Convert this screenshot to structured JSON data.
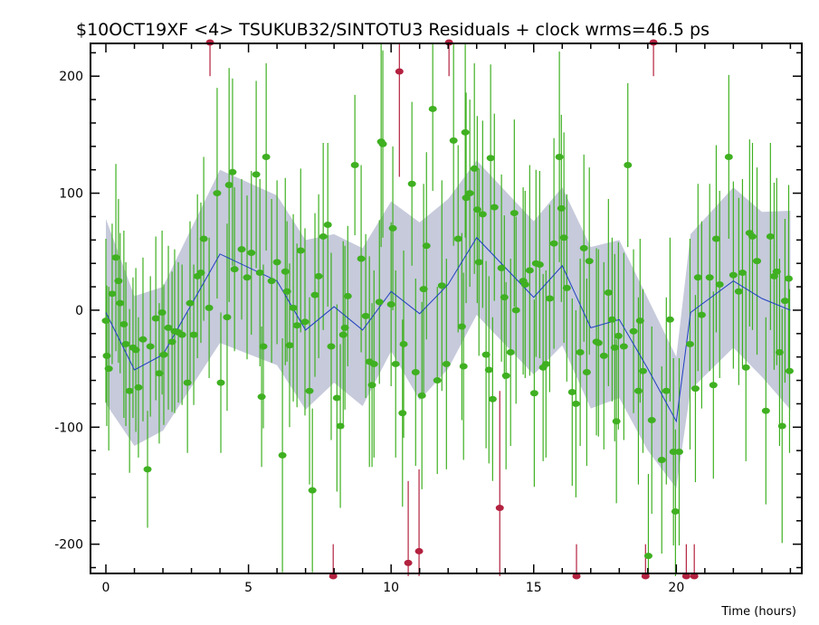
{
  "chart_data": {
    "type": "scatter",
    "title": "$10OCT19XF <4> TSUKUB32/SINTOTU3 Residuals + clock wrms=46.5  ps",
    "xlabel": "Time (hours)",
    "ylabel": "",
    "xlim": [
      -0.54,
      24.4
    ],
    "ylim": [
      -225,
      228
    ],
    "x_ticks": [
      0,
      5,
      10,
      15,
      20
    ],
    "y_ticks": [
      -200,
      -100,
      0,
      100,
      200
    ],
    "grid": false,
    "colors": {
      "points": "#3fb021",
      "outliers": "#b3213f",
      "model": "#1f3fbf",
      "band": "#c6cadb"
    },
    "points": [
      [
        0.0,
        -9,
        70
      ],
      [
        0.03,
        -39,
        60
      ],
      [
        0.1,
        -50,
        70
      ],
      [
        0.22,
        14,
        60
      ],
      [
        0.35,
        45,
        80
      ],
      [
        0.44,
        25,
        70
      ],
      [
        0.5,
        6,
        60
      ],
      [
        0.63,
        -12,
        80
      ],
      [
        0.7,
        -29,
        70
      ],
      [
        0.83,
        -69,
        70
      ],
      [
        0.95,
        -32,
        60
      ],
      [
        1.05,
        -34,
        70
      ],
      [
        1.14,
        -66,
        60
      ],
      [
        1.3,
        -25,
        70
      ],
      [
        1.46,
        -136,
        50
      ],
      [
        1.56,
        -31,
        60
      ],
      [
        1.75,
        -7,
        70
      ],
      [
        1.87,
        -54,
        60
      ],
      [
        1.97,
        -2,
        70
      ],
      [
        2.03,
        -38,
        60
      ],
      [
        2.19,
        -15,
        70
      ],
      [
        2.32,
        -27,
        60
      ],
      [
        2.41,
        -18,
        70
      ],
      [
        2.54,
        -19,
        60
      ],
      [
        2.67,
        -21,
        60
      ],
      [
        2.86,
        -62,
        60
      ],
      [
        2.95,
        6,
        70
      ],
      [
        3.08,
        -21,
        60
      ],
      [
        3.21,
        29,
        70
      ],
      [
        3.33,
        32,
        60
      ],
      [
        3.43,
        61,
        70
      ],
      [
        3.62,
        2,
        60
      ],
      [
        3.9,
        100,
        90
      ],
      [
        4.03,
        -62,
        60
      ],
      [
        4.25,
        -6,
        80
      ],
      [
        4.32,
        107,
        100
      ],
      [
        4.44,
        118,
        80
      ],
      [
        4.51,
        35,
        70
      ],
      [
        4.76,
        52,
        60
      ],
      [
        4.95,
        28,
        70
      ],
      [
        5.1,
        49,
        70
      ],
      [
        5.27,
        116,
        80
      ],
      [
        5.4,
        32,
        80
      ],
      [
        5.46,
        -74,
        60
      ],
      [
        5.52,
        -31,
        70
      ],
      [
        5.62,
        131,
        80
      ],
      [
        5.81,
        25,
        70
      ],
      [
        6.0,
        41,
        70
      ],
      [
        6.19,
        -124,
        100
      ],
      [
        6.29,
        33,
        80
      ],
      [
        6.35,
        16,
        60
      ],
      [
        6.44,
        -30,
        70
      ],
      [
        6.57,
        2,
        80
      ],
      [
        6.7,
        -13,
        70
      ],
      [
        6.83,
        51,
        70
      ],
      [
        6.98,
        -10,
        80
      ],
      [
        7.14,
        -69,
        80
      ],
      [
        7.24,
        -154,
        70
      ],
      [
        7.33,
        13,
        70
      ],
      [
        7.46,
        29,
        70
      ],
      [
        7.62,
        63,
        80
      ],
      [
        7.78,
        73,
        70
      ],
      [
        7.9,
        -31,
        80
      ],
      [
        8.1,
        -75,
        80
      ],
      [
        8.22,
        -99,
        70
      ],
      [
        8.32,
        -21,
        80
      ],
      [
        8.38,
        -15,
        70
      ],
      [
        8.48,
        12,
        60
      ],
      [
        8.73,
        124,
        60
      ],
      [
        8.95,
        44,
        80
      ],
      [
        9.11,
        -5,
        70
      ],
      [
        9.24,
        -44,
        90
      ],
      [
        9.33,
        -64,
        70
      ],
      [
        9.4,
        -46,
        80
      ],
      [
        9.59,
        7,
        70
      ],
      [
        9.65,
        144,
        90
      ],
      [
        9.71,
        142,
        80
      ],
      [
        10.0,
        5,
        70
      ],
      [
        10.06,
        70,
        70
      ],
      [
        10.16,
        -46,
        80
      ],
      [
        10.4,
        -88,
        80
      ],
      [
        10.44,
        -29,
        80
      ],
      [
        10.73,
        108,
        70
      ],
      [
        10.86,
        -53,
        80
      ],
      [
        11.08,
        -73,
        80
      ],
      [
        11.14,
        18,
        90
      ],
      [
        11.24,
        55,
        80
      ],
      [
        11.46,
        172,
        70
      ],
      [
        11.62,
        -60,
        80
      ],
      [
        11.78,
        21,
        90
      ],
      [
        11.94,
        -46,
        90
      ],
      [
        12.19,
        145,
        90
      ],
      [
        12.35,
        61,
        80
      ],
      [
        12.48,
        -14,
        80
      ],
      [
        12.54,
        -48,
        80
      ],
      [
        12.6,
        152,
        90
      ],
      [
        12.63,
        96,
        90
      ],
      [
        12.76,
        100,
        80
      ],
      [
        12.92,
        121,
        90
      ],
      [
        13.02,
        86,
        80
      ],
      [
        13.08,
        41,
        80
      ],
      [
        13.21,
        82,
        80
      ],
      [
        13.33,
        -38,
        80
      ],
      [
        13.43,
        -51,
        80
      ],
      [
        13.49,
        130,
        80
      ],
      [
        13.56,
        -76,
        70
      ],
      [
        13.62,
        88,
        80
      ],
      [
        13.87,
        36,
        80
      ],
      [
        13.97,
        11,
        70
      ],
      [
        14.03,
        -56,
        80
      ],
      [
        14.19,
        -36,
        80
      ],
      [
        14.32,
        83,
        80
      ],
      [
        14.38,
        0,
        80
      ],
      [
        14.63,
        25,
        80
      ],
      [
        14.7,
        22,
        80
      ],
      [
        14.86,
        34,
        90
      ],
      [
        15.02,
        -71,
        80
      ],
      [
        15.08,
        40,
        80
      ],
      [
        15.21,
        39,
        80
      ],
      [
        15.33,
        -49,
        80
      ],
      [
        15.43,
        -46,
        80
      ],
      [
        15.56,
        10,
        80
      ],
      [
        15.71,
        57,
        90
      ],
      [
        15.9,
        131,
        90
      ],
      [
        15.97,
        87,
        80
      ],
      [
        16.06,
        62,
        90
      ],
      [
        16.16,
        19,
        80
      ],
      [
        16.35,
        -70,
        80
      ],
      [
        16.48,
        -80,
        80
      ],
      [
        16.63,
        -36,
        80
      ],
      [
        16.76,
        53,
        80
      ],
      [
        16.86,
        -53,
        80
      ],
      [
        16.95,
        42,
        80
      ],
      [
        17.2,
        -27,
        80
      ],
      [
        17.27,
        -28,
        80
      ],
      [
        17.46,
        -39,
        80
      ],
      [
        17.62,
        15,
        80
      ],
      [
        17.75,
        -8,
        70
      ],
      [
        17.84,
        -32,
        80
      ],
      [
        17.9,
        -95,
        70
      ],
      [
        17.97,
        -22,
        80
      ],
      [
        18.16,
        -31,
        80
      ],
      [
        18.3,
        124,
        70
      ],
      [
        18.5,
        -18,
        70
      ],
      [
        18.67,
        -69,
        80
      ],
      [
        18.73,
        -9,
        70
      ],
      [
        18.83,
        -52,
        70
      ],
      [
        19.02,
        -210,
        70
      ],
      [
        19.14,
        -94,
        80
      ],
      [
        19.49,
        -128,
        80
      ],
      [
        19.65,
        -69,
        80
      ],
      [
        19.78,
        -8,
        70
      ],
      [
        19.9,
        -121,
        80
      ],
      [
        19.97,
        -172,
        70
      ],
      [
        20.1,
        -121,
        80
      ],
      [
        20.48,
        -29,
        90
      ],
      [
        20.67,
        -67,
        80
      ],
      [
        20.76,
        28,
        80
      ],
      [
        20.89,
        -4,
        80
      ],
      [
        21.17,
        28,
        80
      ],
      [
        21.3,
        -64,
        80
      ],
      [
        21.4,
        61,
        80
      ],
      [
        21.52,
        22,
        80
      ],
      [
        21.84,
        131,
        70
      ],
      [
        22.0,
        30,
        80
      ],
      [
        22.19,
        16,
        80
      ],
      [
        22.32,
        32,
        80
      ],
      [
        22.44,
        -49,
        80
      ],
      [
        22.57,
        66,
        80
      ],
      [
        22.67,
        63,
        80
      ],
      [
        22.83,
        42,
        80
      ],
      [
        23.14,
        -86,
        80
      ],
      [
        23.3,
        63,
        80
      ],
      [
        23.43,
        29,
        80
      ],
      [
        23.52,
        33,
        80
      ],
      [
        23.62,
        -36,
        80
      ],
      [
        23.71,
        -99,
        100
      ],
      [
        23.81,
        8,
        70
      ],
      [
        23.94,
        27,
        80
      ],
      [
        23.97,
        -52,
        70
      ]
    ],
    "outliers": [
      [
        3.65,
        260,
        60
      ],
      [
        10.29,
        204,
        90
      ],
      [
        12.03,
        260,
        60
      ],
      [
        19.2,
        260,
        60
      ],
      [
        10.6,
        -216,
        70
      ],
      [
        10.98,
        -206,
        70
      ],
      [
        13.81,
        -169,
        100
      ],
      [
        7.97,
        -260,
        60
      ],
      [
        16.5,
        -260,
        60
      ],
      [
        18.92,
        -260,
        60
      ],
      [
        20.35,
        -260,
        60
      ],
      [
        20.63,
        -260,
        60
      ]
    ],
    "model": [
      [
        0,
        -2
      ],
      [
        1,
        -51
      ],
      [
        2,
        -38
      ],
      [
        4,
        48
      ],
      [
        6,
        25
      ],
      [
        7,
        -17
      ],
      [
        8,
        3
      ],
      [
        9,
        -17
      ],
      [
        10,
        16
      ],
      [
        11,
        -3
      ],
      [
        12,
        22
      ],
      [
        13,
        62
      ],
      [
        15,
        11
      ],
      [
        16,
        38
      ],
      [
        17,
        -15
      ],
      [
        18,
        -8
      ],
      [
        19,
        -50
      ],
      [
        20,
        -95
      ],
      [
        20.5,
        -2
      ],
      [
        22,
        25
      ],
      [
        23,
        10
      ],
      [
        24,
        0
      ]
    ],
    "band_upper": [
      78,
      12,
      20,
      120,
      98,
      60,
      65,
      53,
      93,
      75,
      95,
      128,
      76,
      105,
      54,
      60,
      10,
      -40,
      65,
      105,
      84,
      85
    ],
    "band_lower": [
      -80,
      -116,
      -103,
      -28,
      -47,
      -85,
      -62,
      -82,
      -35,
      -77,
      -50,
      -4,
      -55,
      -30,
      -84,
      -75,
      -120,
      -152,
      -68,
      -32,
      -57,
      -85
    ]
  }
}
